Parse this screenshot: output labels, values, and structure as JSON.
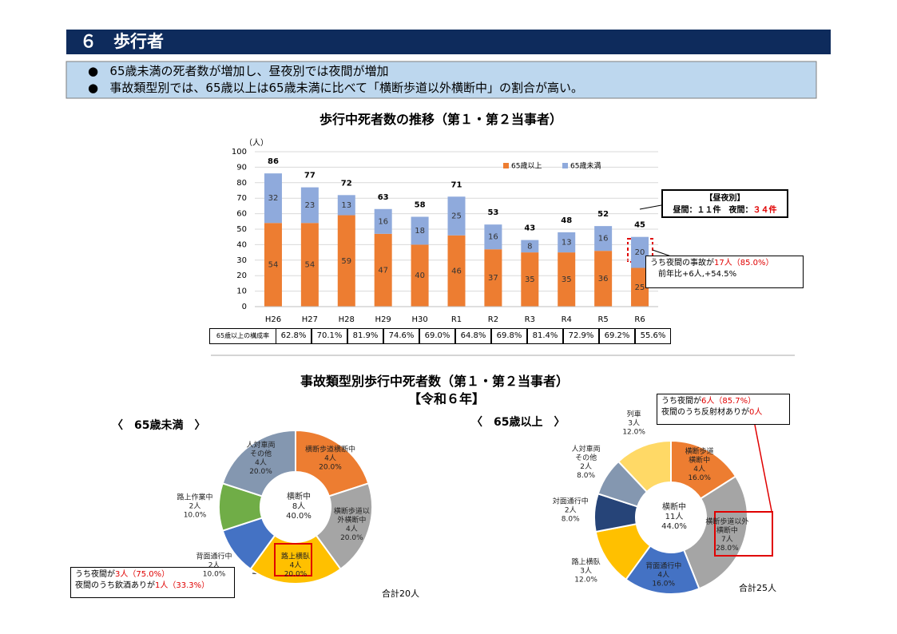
{
  "header": {
    "title": "６　歩行者"
  },
  "bullets": [
    "65歳未満の死者数が増加し、昼夜別では夜間が増加",
    "事故類型別では、65歳以上は65歳未満に比べて「横断歩道以外横断中」の割合が高い。"
  ],
  "chart_data": [
    {
      "type": "bar",
      "stacked": true,
      "title": "歩行中死者数の推移（第１・第２当事者）",
      "y_unit": "（人）",
      "categories": [
        "H26",
        "H27",
        "H28",
        "H29",
        "H30",
        "R1",
        "R2",
        "R3",
        "R4",
        "R5",
        "R6"
      ],
      "series": [
        {
          "name": "65歳以上",
          "color": "#ED7D31",
          "values": [
            54,
            54,
            59,
            47,
            40,
            46,
            37,
            35,
            35,
            36,
            25
          ]
        },
        {
          "name": "65歳未満",
          "color": "#8FAADC",
          "values": [
            32,
            23,
            13,
            16,
            18,
            25,
            16,
            8,
            13,
            16,
            20
          ]
        }
      ],
      "totals": [
        86,
        77,
        72,
        63,
        58,
        71,
        53,
        43,
        48,
        52,
        45
      ],
      "ylim": [
        0,
        100
      ],
      "yticks": [
        0,
        10,
        20,
        30,
        40,
        50,
        60,
        70,
        80,
        90,
        100
      ],
      "grid": true,
      "legend": "top-right"
    },
    {
      "type": "donut",
      "title": "〈　65歳未満　〉",
      "categories": [
        "横断歩道横断中",
        "横断歩道以\n外横断中",
        "路上横臥",
        "背面通行中",
        "路上作業中",
        "人対車両\nその他"
      ],
      "values": [
        4,
        4,
        4,
        2,
        2,
        4
      ],
      "value_labels": [
        "4人",
        "4人",
        "4人",
        "2人",
        "2人",
        "4人"
      ],
      "share_labels": [
        "20.0%",
        "20.0%",
        "20.0%",
        "10.0%",
        "10.0%",
        "20.0%"
      ],
      "colors": [
        "#ED7D31",
        "#A5A5A5",
        "#FFC000",
        "#4472C4",
        "#70AD47",
        "#8497B0"
      ],
      "center": {
        "label": "横断中",
        "value": 8,
        "value_label": "8人",
        "share_label": "40.0%"
      },
      "total_label": "合計20人"
    },
    {
      "type": "donut",
      "title": "〈　65歳以上　〉",
      "categories": [
        "横断歩道\n横断中",
        "横断歩道以外\n横断中",
        "背面通行中",
        "路上横臥",
        "対面通行中",
        "人対車両\nその他",
        "列車"
      ],
      "values": [
        4,
        7,
        4,
        3,
        2,
        2,
        3
      ],
      "value_labels": [
        "4人",
        "7人",
        "4人",
        "3人",
        "2人",
        "2人",
        "3人"
      ],
      "share_labels": [
        "16.0%",
        "28.0%",
        "16.0%",
        "12.0%",
        "8.0%",
        "8.0%",
        "12.0%"
      ],
      "colors": [
        "#ED7D31",
        "#A5A5A5",
        "#4472C4",
        "#FFC000",
        "#264478",
        "#8497B0",
        "#FFD966"
      ],
      "center": {
        "label": "横断中",
        "value": 11,
        "value_label": "11人",
        "share_label": "44.0%"
      },
      "total_label": "合計25人"
    }
  ],
  "table": {
    "header": "65歳以上の構成率",
    "cells": [
      "62.8%",
      "70.1%",
      "81.9%",
      "74.6%",
      "69.0%",
      "64.8%",
      "69.8%",
      "81.4%",
      "72.9%",
      "69.2%",
      "55.6%"
    ]
  },
  "section2": {
    "title": "事故類型別歩行中死者数（第１・第２当事者）",
    "subtitle": "【令和６年】"
  },
  "callouts": {
    "day_night": {
      "title": "【昼夜別】",
      "text": "昼間：１１件　夜間：",
      "highlight": "３４件"
    },
    "night_r6": {
      "text": "うち夜間の事故が",
      "highlight": "17人（85.0%）",
      "line2": "前年比+6人,+54.5%"
    },
    "under65": {
      "text": "うち夜間が",
      "highlight": "3人（75.0%）",
      "line2": "夜間のうち飲酒ありが",
      "highlight2": "1人（33.3%）"
    },
    "over65": {
      "text": "うち夜間が",
      "highlight": "6人（85.7%）",
      "line2": "夜間のうち反射材ありが",
      "highlight2": "0人"
    }
  }
}
